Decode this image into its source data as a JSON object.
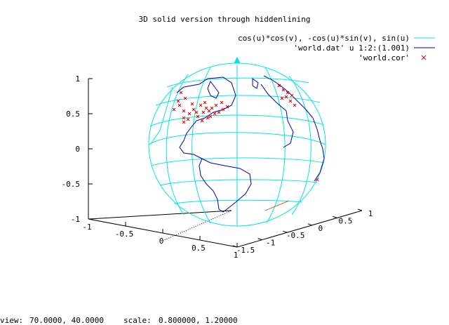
{
  "chart_data": {
    "type": "line",
    "title": "3D solid version through hiddenlining",
    "legend_placement": "top-right",
    "legend": [
      {
        "name": "cos(u)*cos(v), -cos(u)*sin(v), sin(u)",
        "color": "#00e5e5",
        "style": "line"
      },
      {
        "name": "'world.dat' u 1:2:(1.001)",
        "color": "#0000b3",
        "style": "line"
      },
      {
        "name": "'world.cor'",
        "color": "#e00000",
        "style": "x"
      }
    ],
    "z_axis": {
      "range": [
        -1,
        1
      ],
      "ticks": [
        "-1",
        "-0.5",
        "0",
        "0.5",
        "1"
      ]
    },
    "x_axis": {
      "range": [
        -1,
        1
      ],
      "ticks": [
        "-1",
        "-0.5",
        "0",
        "0.5",
        "1"
      ]
    },
    "y_axis": {
      "range": [
        -1.5,
        1
      ],
      "ticks": [
        "-1.5",
        "-1",
        "-0.5",
        "0",
        "0.5",
        "1"
      ]
    }
  },
  "status": {
    "view_label": "view:",
    "view_value": "70.0000,  40.0000",
    "scale_label": "scale:",
    "scale_value": "0.800000,  1.20000"
  }
}
